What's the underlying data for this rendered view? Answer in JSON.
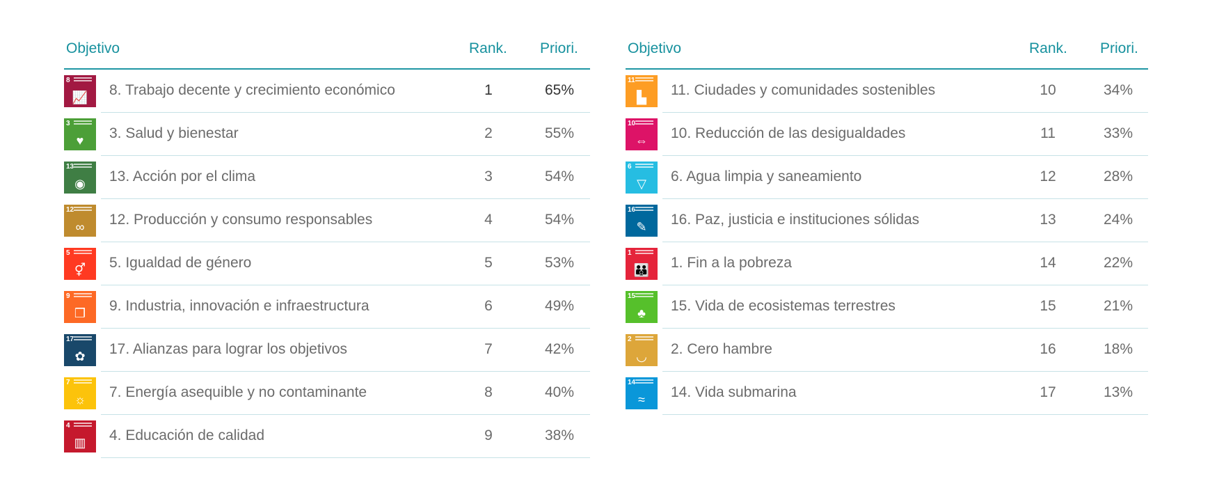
{
  "headers": {
    "objective": "Objetivo",
    "rank": "Rank.",
    "priority": "Priori."
  },
  "colors": {
    "accent": "#17919e",
    "separator": "#c6e2e6"
  },
  "left": [
    {
      "num": "8",
      "name": "8. Trabajo decente y crecimiento económico",
      "rank": "1",
      "priority": "65%",
      "color": "#a21942",
      "icon": "growth-chart-icon",
      "glyph": "📈"
    },
    {
      "num": "3",
      "name": "3. Salud y bienestar",
      "rank": "2",
      "priority": "55%",
      "color": "#4c9f38",
      "icon": "heartbeat-icon",
      "glyph": "♥"
    },
    {
      "num": "13",
      "name": "13. Acción por el clima",
      "rank": "3",
      "priority": "54%",
      "color": "#3f7e44",
      "icon": "eye-globe-icon",
      "glyph": "◉"
    },
    {
      "num": "12",
      "name": "12. Producción y consumo responsables",
      "rank": "4",
      "priority": "54%",
      "color": "#bf8b2e",
      "icon": "infinity-icon",
      "glyph": "∞"
    },
    {
      "num": "5",
      "name": "5. Igualdad de género",
      "rank": "5",
      "priority": "53%",
      "color": "#ff3a21",
      "icon": "gender-icon",
      "glyph": "⚥"
    },
    {
      "num": "9",
      "name": "9. Industria, innovación e infraestructura",
      "rank": "6",
      "priority": "49%",
      "color": "#fd6925",
      "icon": "cubes-icon",
      "glyph": "❒"
    },
    {
      "num": "17",
      "name": "17. Alianzas para lograr los objetivos",
      "rank": "7",
      "priority": "42%",
      "color": "#19486a",
      "icon": "partnership-rings-icon",
      "glyph": "✿"
    },
    {
      "num": "7",
      "name": "7. Energía asequible y no contaminante",
      "rank": "8",
      "priority": "40%",
      "color": "#fcc30b",
      "icon": "sun-icon",
      "glyph": "☼"
    },
    {
      "num": "4",
      "name": "4. Educación de calidad",
      "rank": "9",
      "priority": "38%",
      "color": "#c5192d",
      "icon": "book-icon",
      "glyph": "▥"
    }
  ],
  "right": [
    {
      "num": "11",
      "name": "11. Ciudades y comunidades sostenibles",
      "rank": "10",
      "priority": "34%",
      "color": "#fd9d24",
      "icon": "city-icon",
      "glyph": "▙"
    },
    {
      "num": "10",
      "name": "10. Reducción de las desigualdades",
      "rank": "11",
      "priority": "33%",
      "color": "#dd1367",
      "icon": "equality-arrows-icon",
      "glyph": "⇔"
    },
    {
      "num": "6",
      "name": "6. Agua limpia y saneamiento",
      "rank": "12",
      "priority": "28%",
      "color": "#26bde2",
      "icon": "water-glass-icon",
      "glyph": "▽"
    },
    {
      "num": "16",
      "name": "16. Paz, justicia e instituciones sólidas",
      "rank": "13",
      "priority": "24%",
      "color": "#00689d",
      "icon": "dove-gavel-icon",
      "glyph": "✎"
    },
    {
      "num": "1",
      "name": "1. Fin a la pobreza",
      "rank": "14",
      "priority": "22%",
      "color": "#e5243b",
      "icon": "family-icon",
      "glyph": "👪"
    },
    {
      "num": "15",
      "name": "15. Vida de ecosistemas terrestres",
      "rank": "15",
      "priority": "21%",
      "color": "#56c02b",
      "icon": "tree-icon",
      "glyph": "♣"
    },
    {
      "num": "2",
      "name": "2. Cero hambre",
      "rank": "16",
      "priority": "18%",
      "color": "#dda63a",
      "icon": "bowl-icon",
      "glyph": "◡"
    },
    {
      "num": "14",
      "name": "14. Vida submarina",
      "rank": "17",
      "priority": "13%",
      "color": "#0a97d9",
      "icon": "fish-icon",
      "glyph": "≈"
    }
  ]
}
